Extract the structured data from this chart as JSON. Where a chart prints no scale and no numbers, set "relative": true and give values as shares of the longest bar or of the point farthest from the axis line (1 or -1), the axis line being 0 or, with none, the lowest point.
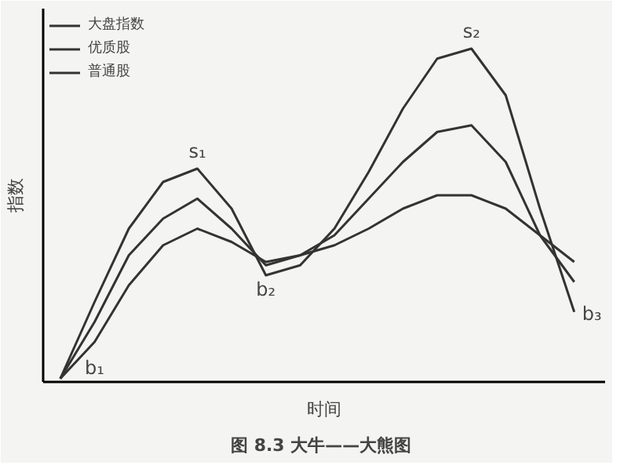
{
  "chart_data": {
    "type": "line",
    "title": "图 8.3  大牛——大熊图",
    "xlabel": "时间",
    "ylabel": "指数",
    "relative": true,
    "legend": "top left",
    "grid": false,
    "marker": "none",
    "line_style": "solid",
    "categories": [
      null,
      null,
      null,
      null,
      null,
      null,
      null,
      null,
      null,
      null,
      null,
      null,
      null,
      null,
      null,
      null
    ],
    "series": [
      {
        "name": "大盘指数",
        "color": "#333333",
        "values": [
          0.01,
          0.24,
          0.46,
          0.6,
          0.64,
          0.52,
          0.32,
          0.35,
          0.46,
          0.63,
          0.82,
          0.97,
          1.0,
          0.86,
          0.52,
          0.21
        ]
      },
      {
        "name": "优质股",
        "color": "#333333",
        "values": [
          0.01,
          0.18,
          0.38,
          0.49,
          0.55,
          0.46,
          0.35,
          0.38,
          0.44,
          0.55,
          0.66,
          0.75,
          0.77,
          0.66,
          0.44,
          0.3
        ]
      },
      {
        "name": "普通股",
        "color": "#333333",
        "values": [
          0.01,
          0.12,
          0.29,
          0.41,
          0.46,
          0.42,
          0.36,
          0.38,
          0.41,
          0.46,
          0.52,
          0.56,
          0.56,
          0.52,
          0.44,
          0.36
        ]
      }
    ],
    "annotations": [
      "s₁",
      "s₂",
      "b₁",
      "b₂",
      "b₃"
    ]
  }
}
